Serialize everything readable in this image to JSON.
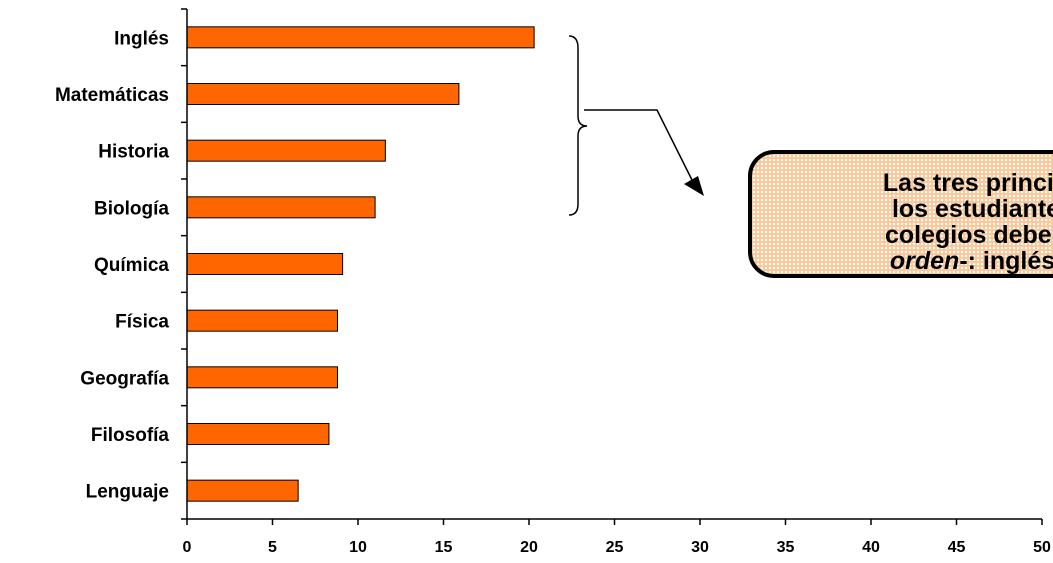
{
  "chart_data": {
    "type": "bar",
    "orientation": "horizontal",
    "categories": [
      "Inglés",
      "Matemáticas",
      "Historia",
      "Biología",
      "Química",
      "Física",
      "Geografía",
      "Filosofía",
      "Lenguaje"
    ],
    "values": [
      20.3,
      15.9,
      11.6,
      11.0,
      9.1,
      8.8,
      8.8,
      8.3,
      6.5
    ],
    "xlim": [
      0,
      50
    ],
    "xticks": [
      "0",
      "5",
      "10",
      "15",
      "20",
      "25",
      "30",
      "35",
      "40",
      "45",
      "50"
    ],
    "bar_color": "#ff6600",
    "grid": false,
    "annotation": {
      "text_line1": "Las tres princip",
      "text_line2": "los estudiante",
      "text_line3": "colegios deben",
      "text_line4_italic": "orden",
      "text_line4_rest": "-: inglés,",
      "brackets_categories": [
        "Inglés",
        "Matemáticas",
        "Historia",
        "Biología"
      ],
      "background_color": "#f8c99c"
    }
  }
}
